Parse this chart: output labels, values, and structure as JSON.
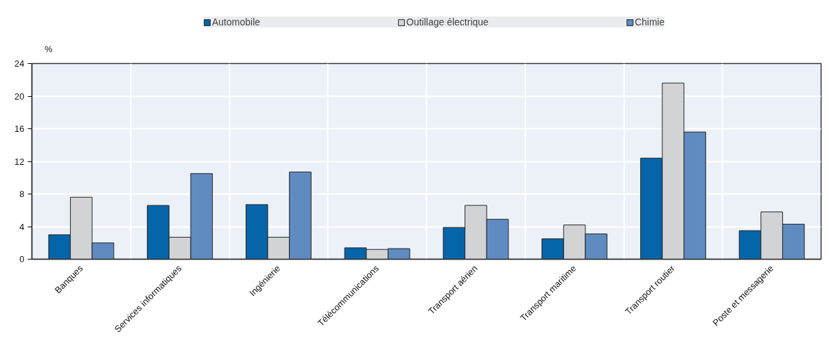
{
  "chart_data": {
    "type": "bar",
    "ylabel": "%",
    "categories": [
      "Banques",
      "Services informatiques",
      "Ingénierie",
      "Télécommunications",
      "Transport aérien",
      "Transport maritime",
      "Transport routier",
      "Poste et messagerie"
    ],
    "series": [
      {
        "name": "Automobile",
        "color": "#0565a8",
        "values": [
          3.0,
          6.6,
          6.7,
          1.4,
          3.9,
          2.5,
          12.4,
          3.5
        ]
      },
      {
        "name": "Outillage électrique",
        "color": "#d2d3d5",
        "values": [
          7.6,
          2.7,
          2.7,
          1.2,
          6.6,
          4.2,
          21.6,
          5.8
        ]
      },
      {
        "name": "Chimie",
        "color": "#5f8bc1",
        "values": [
          2.0,
          10.5,
          10.7,
          1.3,
          4.9,
          3.1,
          15.6,
          4.3
        ]
      }
    ],
    "ylim": [
      0,
      24
    ],
    "yticks": [
      0,
      4,
      8,
      12,
      16,
      20,
      24
    ],
    "grid": true,
    "legend": "top"
  }
}
